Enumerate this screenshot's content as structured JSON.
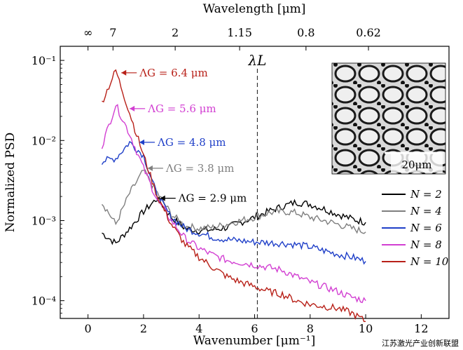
{
  "chart_data": {
    "type": "line",
    "xlabel": "Wavenumber [μm⁻¹]",
    "ylabel": "Normalized PSD",
    "top_axis_label": "Wavelength [μm]",
    "xlim": [
      -1,
      13
    ],
    "ylim": [
      6e-05,
      0.15
    ],
    "yscale": "log",
    "x_ticks": [
      0,
      2,
      4,
      6,
      8,
      10,
      12
    ],
    "x_tick_labels": [
      "0",
      "2",
      "4",
      "6",
      "8",
      "10",
      "12"
    ],
    "y_ticks": [
      0.0001,
      0.001,
      0.01,
      0.1
    ],
    "y_tick_labels": [
      "10⁻⁴",
      "10⁻³",
      "10⁻²",
      "10⁻¹"
    ],
    "top_ticks": [
      0,
      0.9,
      3.14,
      5.46,
      7.85,
      10.1
    ],
    "top_tick_labels": [
      "∞",
      "7",
      "2",
      "1.15",
      "0.8",
      "0.62"
    ],
    "vline": {
      "x": 6.1,
      "label": "λL"
    },
    "legend_position": "right",
    "legend": [
      {
        "label": "N = 2",
        "color": "#000000"
      },
      {
        "label": "N = 4",
        "color": "#7f7f7f"
      },
      {
        "label": "N = 6",
        "color": "#1f3fc8"
      },
      {
        "label": "N = 8",
        "color": "#d23fd2"
      },
      {
        "label": "N = 10",
        "color": "#b82018"
      }
    ],
    "series": [
      {
        "name": "N = 2",
        "color": "#000000",
        "x": [
          0.5,
          1,
          1.5,
          2,
          2.5,
          3,
          3.5,
          4,
          4.5,
          5,
          5.5,
          6,
          6.5,
          7,
          7.5,
          8,
          8.5,
          9,
          9.5,
          10
        ],
        "y": [
          0.0007,
          0.00052,
          0.0008,
          0.0013,
          0.0019,
          0.0011,
          0.0008,
          0.00075,
          0.00077,
          0.00082,
          0.00095,
          0.0011,
          0.0013,
          0.0015,
          0.0017,
          0.0016,
          0.0014,
          0.0012,
          0.00105,
          0.00095
        ]
      },
      {
        "name": "N = 4",
        "color": "#7f7f7f",
        "x": [
          0.5,
          1,
          1.5,
          2,
          2.5,
          3,
          3.5,
          4,
          4.5,
          5,
          5.5,
          6,
          6.5,
          7,
          7.5,
          8,
          8.5,
          9,
          9.5,
          10
        ],
        "y": [
          0.0017,
          0.0009,
          0.0022,
          0.0042,
          0.0022,
          0.0012,
          0.00085,
          0.0008,
          0.00082,
          0.0009,
          0.001,
          0.0011,
          0.00125,
          0.0013,
          0.00125,
          0.0011,
          0.001,
          0.0009,
          0.0008,
          0.00072
        ]
      },
      {
        "name": "N = 6",
        "color": "#1f3fc8",
        "x": [
          0.5,
          1,
          1.5,
          2,
          2.5,
          3,
          3.5,
          4,
          4.5,
          5,
          5.5,
          6,
          6.5,
          7,
          7.5,
          8,
          8.5,
          9,
          9.5,
          10
        ],
        "y": [
          0.0055,
          0.006,
          0.0095,
          0.0065,
          0.002,
          0.0011,
          0.0008,
          0.0007,
          0.00062,
          0.00058,
          0.00056,
          0.00054,
          0.00053,
          0.00052,
          0.0005,
          0.00047,
          0.00042,
          0.00038,
          0.00035,
          0.00031
        ]
      },
      {
        "name": "N = 8",
        "color": "#d23fd2",
        "x": [
          0.5,
          1,
          1.5,
          2,
          2.5,
          3,
          3.5,
          4,
          4.5,
          5,
          5.5,
          6,
          6.5,
          7,
          7.5,
          8,
          8.5,
          9,
          9.5,
          10
        ],
        "y": [
          0.0085,
          0.028,
          0.012,
          0.0045,
          0.0018,
          0.001,
          0.0006,
          0.00045,
          0.00037,
          0.00032,
          0.0003,
          0.00028,
          0.00026,
          0.00024,
          0.0002,
          0.00017,
          0.00015,
          0.00013,
          0.00011,
          0.0001
        ]
      },
      {
        "name": "N = 10",
        "color": "#b82018",
        "x": [
          0.5,
          1,
          1.5,
          2,
          2.5,
          3,
          3.5,
          4,
          4.5,
          5,
          5.5,
          6,
          6.5,
          7,
          7.5,
          8,
          8.5,
          9,
          9.5,
          10
        ],
        "y": [
          0.03,
          0.075,
          0.022,
          0.0065,
          0.002,
          0.0009,
          0.0005,
          0.00035,
          0.00026,
          0.0002,
          0.00017,
          0.00015,
          0.00013,
          0.00012,
          0.0001,
          9e-05,
          8.5e-05,
          8e-05,
          7e-05,
          5.5e-05
        ]
      }
    ],
    "annotations": [
      {
        "text": "ΛG = 6.4 μm",
        "color": "#b82018",
        "x": 1.15,
        "y": 0.07
      },
      {
        "text": "ΛG = 5.6 μm",
        "color": "#d23fd2",
        "x": 1.45,
        "y": 0.025
      },
      {
        "text": "ΛG = 4.8 μm",
        "color": "#1f3fc8",
        "x": 1.8,
        "y": 0.0095
      },
      {
        "text": "ΛG = 3.8 μm",
        "color": "#7f7f7f",
        "x": 2.1,
        "y": 0.0045
      },
      {
        "text": "ΛG = 2.9 μm",
        "color": "#000000",
        "x": 2.55,
        "y": 0.0019
      }
    ],
    "inset": {
      "scale_label": "20μm"
    },
    "grid": false
  },
  "watermark": "江苏激光产业创新联盟"
}
